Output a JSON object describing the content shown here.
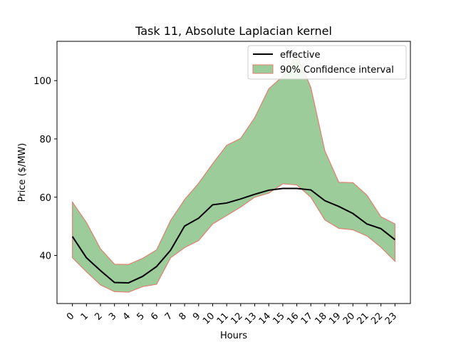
{
  "chart_data": {
    "type": "line",
    "title": "Task 11, Absolute Laplacian kernel",
    "xlabel": "Hours",
    "ylabel": "Price ($/MW)",
    "categories": [
      "0",
      "1",
      "2",
      "3",
      "4",
      "5",
      "6",
      "7",
      "8",
      "9",
      "10",
      "11",
      "12",
      "13",
      "14",
      "15",
      "16",
      "17",
      "18",
      "19",
      "20",
      "21",
      "22",
      "23"
    ],
    "xlim": [
      -1.1,
      24.1
    ],
    "ylim": [
      23.5,
      113.5
    ],
    "yticks": [
      40,
      60,
      80,
      100
    ],
    "series": [
      {
        "name": "effective",
        "type": "line",
        "color": "#000000",
        "values": [
          46.5,
          39.2,
          34.8,
          30.7,
          30.6,
          32.8,
          36.2,
          41.8,
          50.1,
          52.8,
          57.4,
          58.0,
          59.4,
          61.0,
          62.4,
          63.0,
          63.0,
          62.5,
          58.8,
          56.8,
          54.4,
          50.8,
          49.2,
          45.4
        ]
      }
    ],
    "confidence_band": {
      "name": "90% Confidence interval",
      "fill_color": "#9bcc9a",
      "edge_color": "#e08070",
      "lower": [
        39.2,
        34.4,
        29.9,
        27.6,
        27.4,
        29.3,
        30.1,
        39.2,
        42.7,
        45.1,
        50.8,
        53.7,
        56.6,
        60.0,
        61.4,
        64.6,
        64.2,
        60.0,
        52.2,
        49.3,
        48.8,
        46.7,
        42.8,
        38.0
      ],
      "upper": [
        58.3,
        51.3,
        42.3,
        37.0,
        36.9,
        39.0,
        41.9,
        52.0,
        59.2,
        64.8,
        71.5,
        77.8,
        80.2,
        87.3,
        97.2,
        101.5,
        109.0,
        97.7,
        75.9,
        65.1,
        65.0,
        60.7,
        53.3,
        50.8
      ]
    },
    "legend": {
      "placement": "top-right",
      "entries": [
        "effective",
        "90% Confidence interval"
      ]
    },
    "grid": false
  }
}
